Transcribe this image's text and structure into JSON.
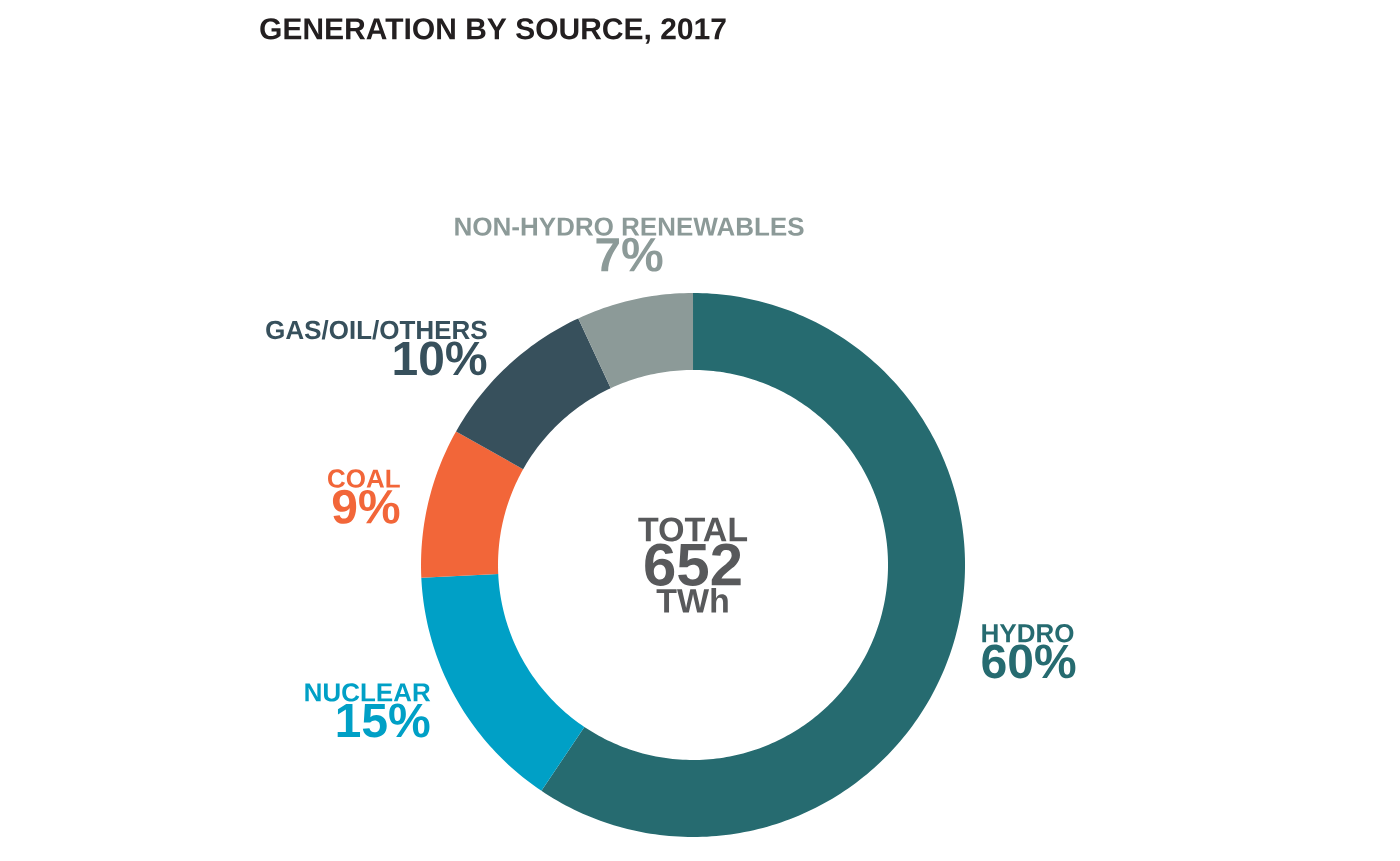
{
  "chart_data": {
    "type": "donut",
    "title": "GENERATION BY SOURCE, 2017",
    "categories": [
      "HYDRO",
      "NUCLEAR",
      "COAL",
      "GAS/OIL/OTHERS",
      "NON-HYDRO RENEWABLES"
    ],
    "values": [
      60,
      15,
      9,
      10,
      7
    ],
    "colors": [
      "#266b70",
      "#00a0c6",
      "#f26639",
      "#37505c",
      "#8c9a98"
    ],
    "value_labels": [
      "60%",
      "15%",
      "9%",
      "10%",
      "7%"
    ],
    "annotations": [
      "TOTAL",
      "652",
      "TWh"
    ]
  }
}
